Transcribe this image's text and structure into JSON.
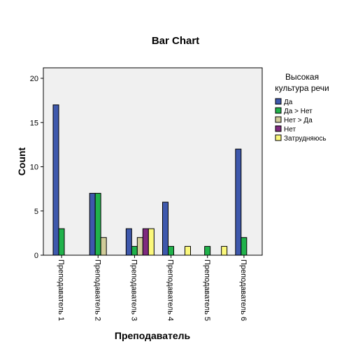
{
  "chart_data": {
    "type": "bar",
    "title": "Bar Chart",
    "xlabel": "Преподаватель",
    "ylabel": "Count",
    "ylim": [
      0,
      20
    ],
    "yticks": [
      0,
      5,
      10,
      15,
      20
    ],
    "categories": [
      "Преподаватель 1",
      "Преподаватель 2",
      "Преподаватель 3",
      "Преподаватель 4",
      "Преподаватель 5",
      "Преподаватель 6"
    ],
    "legend_title": "Высокая культура речи",
    "legend_title_lines": [
      "Высокая",
      "культура речи"
    ],
    "legend_position": "right",
    "grid": false,
    "series": [
      {
        "name": "Да",
        "color": "#3e58ac",
        "values": [
          17,
          7,
          3,
          6,
          0,
          12
        ]
      },
      {
        "name": "Да > Нет",
        "color": "#21b24b",
        "values": [
          3,
          7,
          1,
          1,
          1,
          2
        ]
      },
      {
        "name": "Нет > Да",
        "color": "#d1cc9a",
        "values": [
          0,
          2,
          2,
          0,
          0,
          0
        ]
      },
      {
        "name": "Нет",
        "color": "#7f2a7f",
        "values": [
          0,
          0,
          3,
          0,
          0,
          0
        ]
      },
      {
        "name": "Затрудняюсь",
        "color": "#fbf87c",
        "values": [
          0,
          0,
          3,
          1,
          1,
          0
        ]
      }
    ]
  },
  "colors": {
    "plot_background": "#f0f0f0",
    "bar_outline": "#000000"
  }
}
